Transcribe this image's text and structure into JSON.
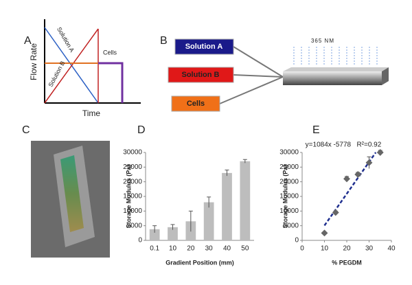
{
  "panels": {
    "A": {
      "label": "A",
      "y_axis": "Flow Rate",
      "x_axis": "Time",
      "solution_a": "Solution A",
      "solution_b": "Solution B",
      "cells": "Cells"
    },
    "B": {
      "label": "B",
      "boxes": [
        "Solution A",
        "Solution B",
        "Cells"
      ],
      "wavelength": "365 NM"
    },
    "C": {
      "label": "C"
    }
  },
  "chart_data": [
    {
      "type": "bar",
      "panel_label": "D",
      "x_label": "Gradient Position (mm)",
      "y_label": "Storage Modulus (Pa)",
      "categories": [
        "0.1",
        "10",
        "20",
        "30",
        "40",
        "50"
      ],
      "values": [
        3800,
        4500,
        6500,
        13000,
        23000,
        27000
      ],
      "errors": [
        1200,
        900,
        3500,
        1800,
        1000,
        600
      ],
      "color": "#bdbdbd",
      "ylim": [
        0,
        30000
      ],
      "yticks": [
        0,
        5000,
        10000,
        15000,
        20000,
        25000,
        30000
      ]
    },
    {
      "type": "scatter",
      "panel_label": "E",
      "x_label": "% PEGDM",
      "y_label": "Storage Modulus (Pa)",
      "annotation": "y=1084x -5778   R²=0.92",
      "x": [
        10,
        15,
        20,
        25,
        30,
        35
      ],
      "values": [
        2500,
        9500,
        21000,
        22500,
        26500,
        30000
      ],
      "errors": [
        0,
        500,
        800,
        700,
        2000,
        700
      ],
      "color": "#666666",
      "trend_color": "#1f2f8f",
      "trendline": {
        "slope": 1084,
        "intercept": -5778,
        "x": [
          10,
          33
        ]
      },
      "xlim": [
        0,
        40
      ],
      "xticks": [
        0,
        10,
        20,
        30,
        40
      ],
      "ylim": [
        0,
        30000
      ],
      "yticks": [
        0,
        5000,
        10000,
        15000,
        20000,
        25000,
        30000
      ]
    }
  ]
}
